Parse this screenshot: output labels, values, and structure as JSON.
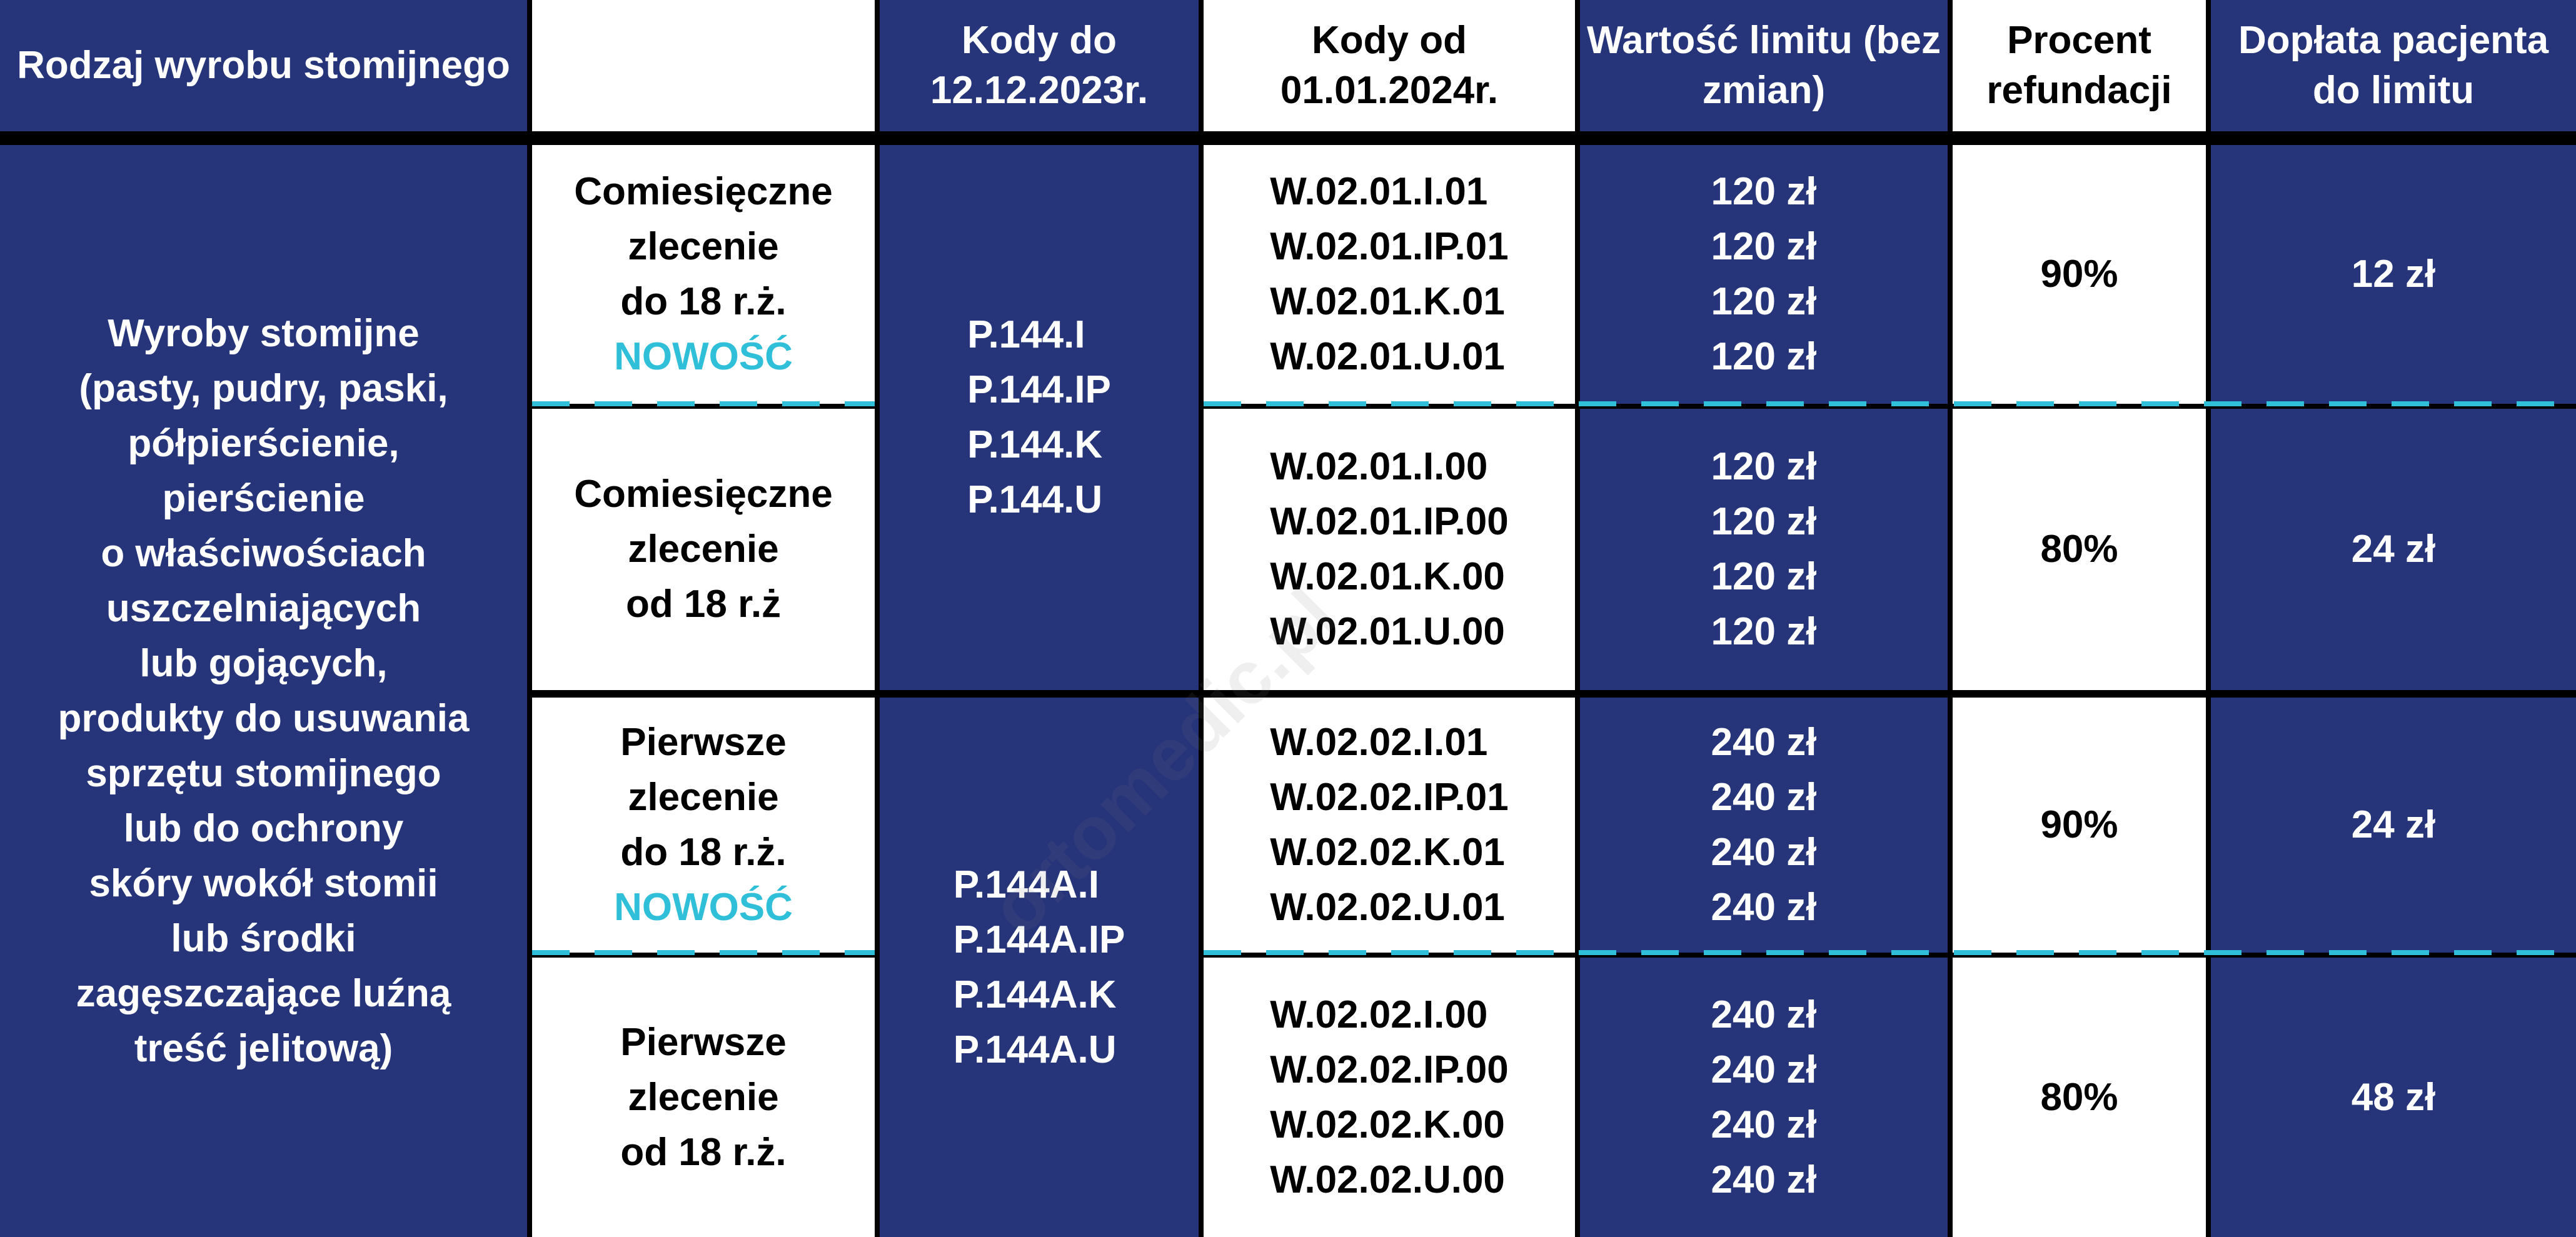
{
  "header": [
    "Rodzaj wyrobu stomijnego",
    "",
    "Kody do 12.12.2023r.",
    "Kody od 01.01.2024r.",
    "Wartość limitu (bez zmian)",
    "Procent refundacji",
    "Dopłata pacjenta do limitu"
  ],
  "category": [
    "Wyroby stomijne",
    "(pasty, pudry, paski,",
    "półpierścienie,",
    "pierścienie",
    "o właściwościach",
    "uszczelniających",
    "lub gojących,",
    "produkty do usuwania",
    "sprzętu stomijnego",
    "lub do ochrony",
    "skóry wokół stomii",
    "lub środki",
    "zagęszczające luźną",
    "treść jelitową)"
  ],
  "groups": [
    {
      "old_codes": [
        "P.144.I",
        "P.144.IP",
        "P.144.K",
        "P.144.U"
      ],
      "rows": [
        {
          "label": [
            "Comiesięczne",
            "zlecenie",
            "do 18 r.ż."
          ],
          "badge": "NOWOŚĆ",
          "new_codes": [
            "W.02.01.I.01",
            "W.02.01.IP.01",
            "W.02.01.K.01",
            "W.02.01.U.01"
          ],
          "limits": [
            "120 zł",
            "120 zł",
            "120 zł",
            "120 zł"
          ],
          "percent": "90%",
          "copay": "12 zł"
        },
        {
          "label": [
            "Comiesięczne",
            "zlecenie",
            "od 18 r.ż"
          ],
          "badge": "",
          "new_codes": [
            "W.02.01.I.00",
            "W.02.01.IP.00",
            "W.02.01.K.00",
            "W.02.01.U.00"
          ],
          "limits": [
            "120 zł",
            "120 zł",
            "120 zł",
            "120 zł"
          ],
          "percent": "80%",
          "copay": "24 zł"
        }
      ]
    },
    {
      "old_codes": [
        "P.144A.I",
        "P.144A.IP",
        "P.144A.K",
        "P.144A.U"
      ],
      "rows": [
        {
          "label": [
            "Pierwsze",
            "zlecenie",
            "do 18 r.ż."
          ],
          "badge": "NOWOŚĆ",
          "new_codes": [
            "W.02.02.I.01",
            "W.02.02.IP.01",
            "W.02.02.K.01",
            "W.02.02.U.01"
          ],
          "limits": [
            "240 zł",
            "240 zł",
            "240 zł",
            "240 zł"
          ],
          "percent": "90%",
          "copay": "24 zł"
        },
        {
          "label": [
            "Pierwsze",
            "zlecenie",
            "od 18 r.ż."
          ],
          "badge": "",
          "new_codes": [
            "W.02.02.I.00",
            "W.02.02.IP.00",
            "W.02.02.K.00",
            "W.02.02.U.00"
          ],
          "limits": [
            "240 zł",
            "240 zł",
            "240 zł",
            "240 zł"
          ],
          "percent": "80%",
          "copay": "48 zł"
        }
      ]
    }
  ],
  "watermark": "ortomedic.pl",
  "colors": {
    "navy": "#26347a",
    "accent": "#2fbfd8"
  }
}
